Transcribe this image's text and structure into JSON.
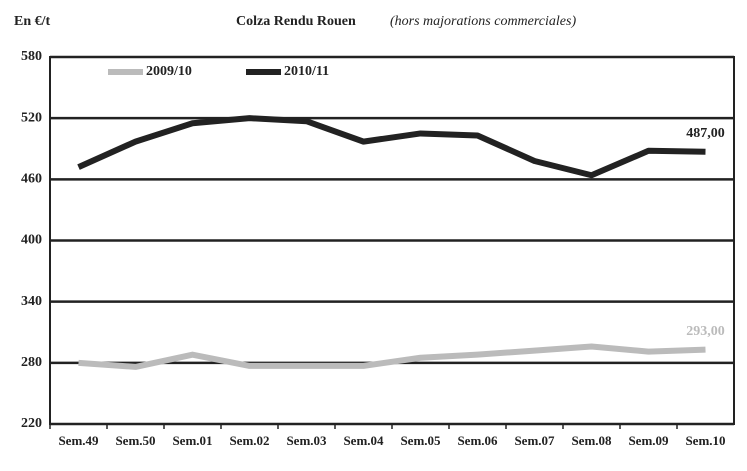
{
  "chart_data": {
    "type": "line",
    "title": "Colza Rendu Rouen",
    "subtitle": "(hors majorations commerciales)",
    "y_label": "En €/t",
    "categories": [
      "Sem.49",
      "Sem.50",
      "Sem.01",
      "Sem.02",
      "Sem.03",
      "Sem.04",
      "Sem.05",
      "Sem.06",
      "Sem.07",
      "Sem.08",
      "Sem.09",
      "Sem.10"
    ],
    "series": [
      {
        "name": "2009/10",
        "color": "#bbbbbb",
        "values": [
          280,
          276,
          288,
          277,
          277,
          277,
          285,
          288,
          292,
          296,
          291,
          293
        ],
        "value_labels": [
          null,
          null,
          null,
          null,
          null,
          null,
          null,
          null,
          null,
          null,
          null,
          "293,00"
        ]
      },
      {
        "name": "2010/11",
        "color": "#222222",
        "values": [
          472,
          497,
          515,
          520,
          517,
          497,
          505,
          503,
          478,
          464,
          488,
          487
        ],
        "value_labels": [
          null,
          null,
          null,
          null,
          null,
          null,
          null,
          null,
          null,
          null,
          null,
          "487,00"
        ]
      }
    ],
    "ylim": [
      220,
      580
    ],
    "yticks": [
      220,
      280,
      340,
      400,
      460,
      520,
      580
    ],
    "grid": true
  }
}
